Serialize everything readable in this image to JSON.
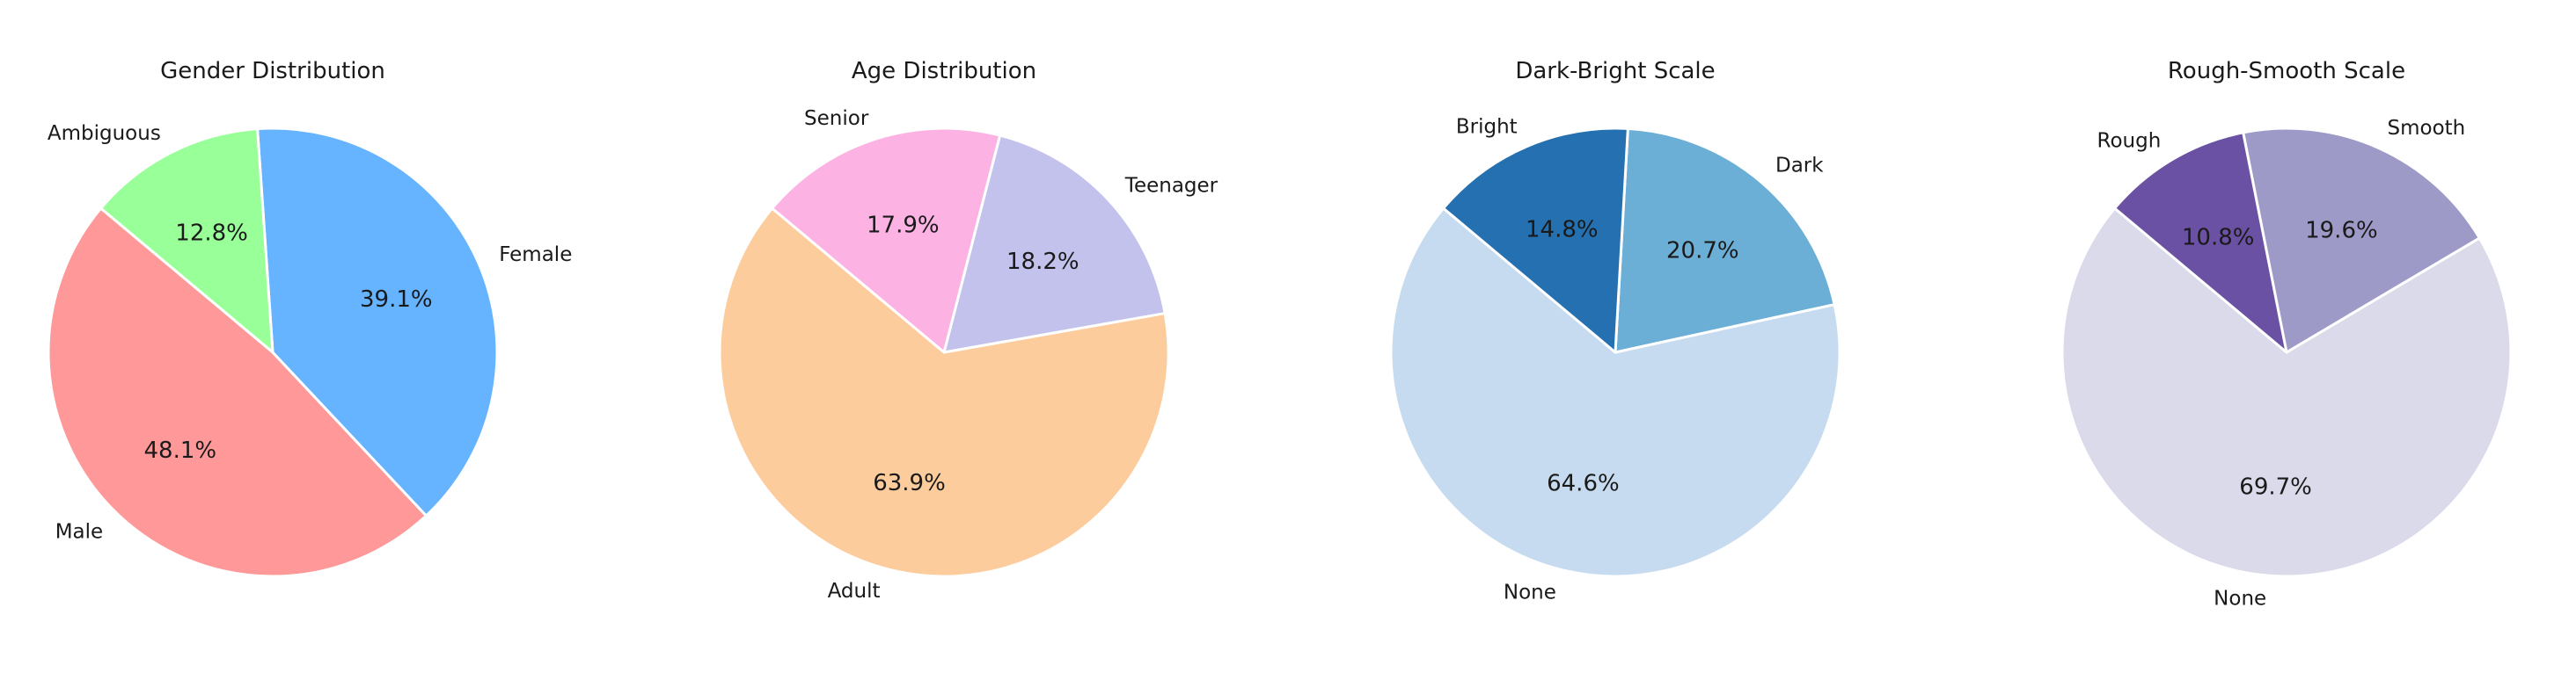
{
  "figure": {
    "background": "#ffffff",
    "layout": "1x4 pie charts"
  },
  "chart_data": [
    {
      "type": "pie",
      "title": "Gender Distribution",
      "labels": [
        "Male",
        "Female",
        "Ambiguous"
      ],
      "values": [
        48.1,
        39.1,
        12.8
      ],
      "value_labels": [
        "48.1%",
        "39.1%",
        "12.8%"
      ],
      "colors": [
        "#ff9999",
        "#66b3ff",
        "#99ff99"
      ],
      "start_angle": 140,
      "direction": "counterclockwise"
    },
    {
      "type": "pie",
      "title": "Age Distribution",
      "labels": [
        "Adult",
        "Teenager",
        "Senior"
      ],
      "values": [
        63.9,
        18.2,
        17.9
      ],
      "value_labels": [
        "63.9%",
        "18.2%",
        "17.9%"
      ],
      "colors": [
        "#fdcc9d",
        "#c2c2ec",
        "#fcb3e4"
      ],
      "start_angle": 140,
      "direction": "counterclockwise"
    },
    {
      "type": "pie",
      "title": "Dark-Bright Scale",
      "labels": [
        "None",
        "Dark",
        "Bright"
      ],
      "values": [
        64.6,
        20.7,
        14.8
      ],
      "value_labels": [
        "64.6%",
        "20.7%",
        "14.8%"
      ],
      "colors": [
        "#c6dbef",
        "#6baed6",
        "#2470b0"
      ],
      "start_angle": 140,
      "direction": "counterclockwise"
    },
    {
      "type": "pie",
      "title": "Rough-Smooth Scale",
      "labels": [
        "None",
        "Smooth",
        "Rough"
      ],
      "values": [
        69.7,
        19.6,
        10.8
      ],
      "value_labels": [
        "69.7%",
        "19.6%",
        "10.8%"
      ],
      "colors": [
        "#dadaea",
        "#9e9ac8",
        "#6a51a3"
      ],
      "start_angle": 140,
      "direction": "counterclockwise"
    }
  ]
}
